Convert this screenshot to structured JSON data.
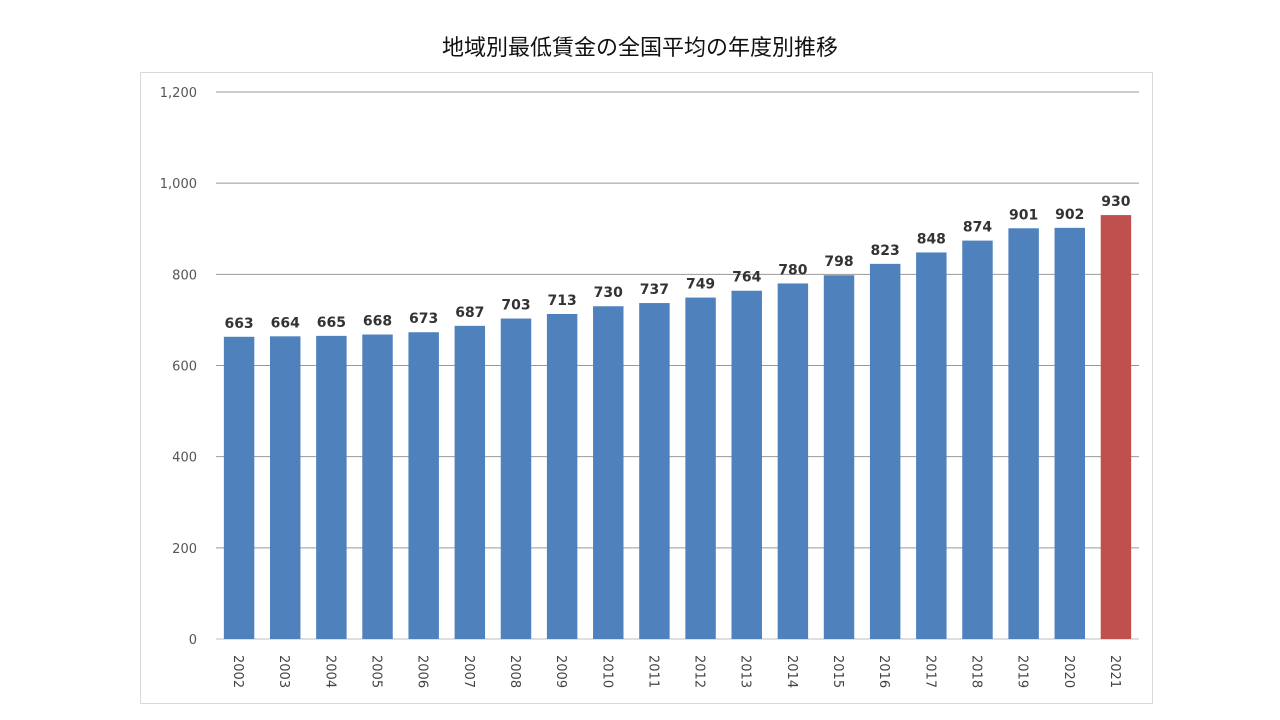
{
  "chart_data": {
    "type": "bar",
    "title": "地域別最低賃金の全国平均の年度別推移",
    "xlabel": "",
    "ylabel": "",
    "categories": [
      "2002",
      "2003",
      "2004",
      "2005",
      "2006",
      "2007",
      "2008",
      "2009",
      "2010",
      "2011",
      "2012",
      "2013",
      "2014",
      "2015",
      "2016",
      "2017",
      "2018",
      "2019",
      "2020",
      "2021"
    ],
    "values": [
      663,
      664,
      665,
      668,
      673,
      687,
      703,
      713,
      730,
      737,
      749,
      764,
      780,
      798,
      823,
      848,
      874,
      901,
      902,
      930
    ],
    "data_labels": [
      "663",
      "664",
      "665",
      "668",
      "673",
      "687",
      "703",
      "713",
      "730",
      "737",
      "749",
      "764",
      "780",
      "798",
      "823",
      "848",
      "874",
      "901",
      "902",
      "930"
    ],
    "ylim": [
      0,
      1200
    ],
    "yticks": [
      0,
      200,
      400,
      600,
      800,
      1000,
      1200
    ],
    "ytick_labels": [
      "0",
      "200",
      "400",
      "600",
      "800",
      "1,000",
      "1,200"
    ],
    "grid": true,
    "legend": "none",
    "colors": {
      "bar": "#4f81bd",
      "highlight_bar": "#c0504d",
      "highlight_label": "#ff0000",
      "label": "#333333",
      "grid": "#999999"
    },
    "highlight_index": 19
  }
}
